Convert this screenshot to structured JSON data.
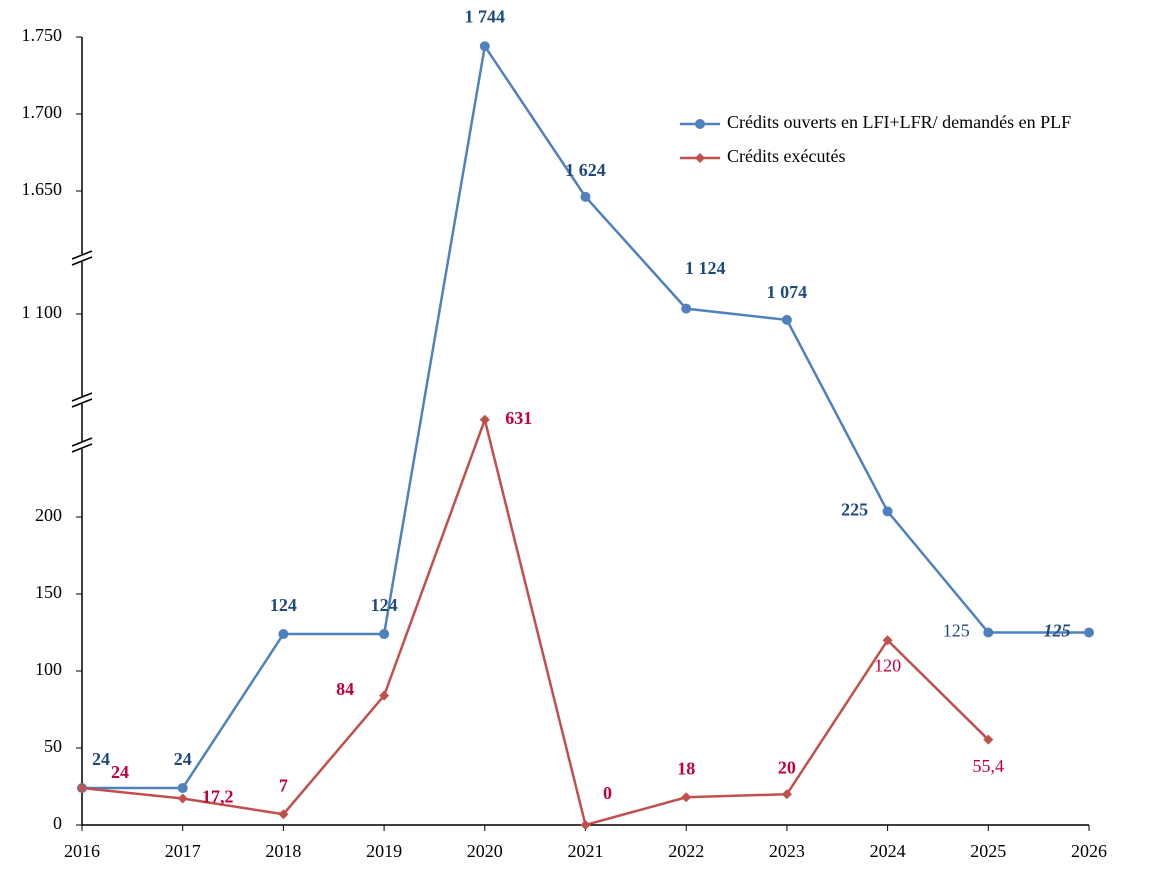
{
  "chart_data": {
    "type": "line",
    "x": [
      2016,
      2017,
      2018,
      2019,
      2020,
      2021,
      2022,
      2023,
      2024,
      2025,
      2026
    ],
    "xlim": [
      2016,
      2026
    ],
    "xticks": [
      2016,
      2017,
      2018,
      2019,
      2020,
      2021,
      2022,
      2023,
      2024,
      2025,
      2026
    ],
    "ylim": [
      0,
      1750
    ],
    "yticks": [
      0,
      50,
      100,
      150,
      200,
      {
        "value": 1100,
        "label": "1 100"
      },
      {
        "value": 1650,
        "label": "1.650"
      },
      {
        "value": 1700,
        "label": "1.700"
      },
      {
        "value": 1750,
        "label": "1.750"
      }
    ],
    "y_breaks": true,
    "legend": "upper right",
    "series": [
      {
        "name": "Crédits ouverts en LFI+LFR/ demandés en PLF",
        "color": "#4f81bd",
        "marker": "circle",
        "label_color": "#1f497d",
        "values": [
          24,
          24,
          124,
          124,
          1744,
          1624,
          1124,
          1074,
          225,
          125,
          125
        ],
        "value_labels": [
          "24",
          "24",
          "124",
          "124",
          "1 744",
          "1 624",
          "1 124",
          "1 074",
          "225",
          "125",
          "125"
        ]
      },
      {
        "name": "Crédits exécutés",
        "color": "#c0504d",
        "marker": "diamond",
        "label_color": "#c0003c",
        "values": [
          24,
          17.2,
          7,
          84,
          631,
          0,
          18,
          20,
          120,
          55.4,
          null
        ],
        "value_labels": [
          "24",
          "17,2",
          "7",
          "84",
          "631",
          "0",
          "18",
          "20",
          "120",
          "55,4",
          null
        ]
      }
    ]
  }
}
